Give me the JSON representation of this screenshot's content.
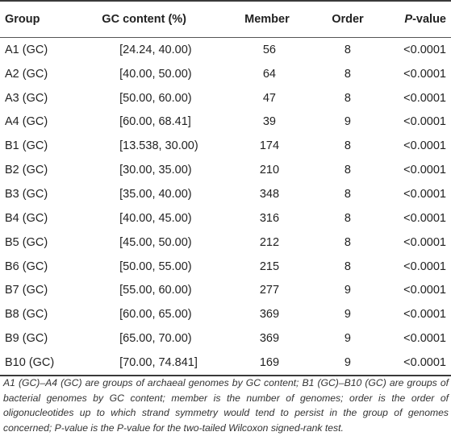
{
  "table": {
    "headers": {
      "group": "Group",
      "gc": "GC content (%)",
      "member": "Member",
      "order": "Order",
      "p_italic": "P",
      "p_rest": "-value"
    },
    "rows": [
      {
        "group": "A1 (GC)",
        "gc": "[24.24, 40.00)",
        "member": "56",
        "order": "8",
        "p": "<0.0001"
      },
      {
        "group": "A2 (GC)",
        "gc": "[40.00, 50.00)",
        "member": "64",
        "order": "8",
        "p": "<0.0001"
      },
      {
        "group": "A3 (GC)",
        "gc": "[50.00, 60.00)",
        "member": "47",
        "order": "8",
        "p": "<0.0001"
      },
      {
        "group": "A4 (GC)",
        "gc": "[60.00, 68.41]",
        "member": "39",
        "order": "9",
        "p": "<0.0001"
      },
      {
        "group": "B1 (GC)",
        "gc": "[13.538, 30.00)",
        "member": "174",
        "order": "8",
        "p": "<0.0001"
      },
      {
        "group": "B2 (GC)",
        "gc": "[30.00, 35.00)",
        "member": "210",
        "order": "8",
        "p": "<0.0001"
      },
      {
        "group": "B3 (GC)",
        "gc": "[35.00, 40.00)",
        "member": "348",
        "order": "8",
        "p": "<0.0001"
      },
      {
        "group": "B4 (GC)",
        "gc": "[40.00, 45.00)",
        "member": "316",
        "order": "8",
        "p": "<0.0001"
      },
      {
        "group": "B5 (GC)",
        "gc": "[45.00, 50.00)",
        "member": "212",
        "order": "8",
        "p": "<0.0001"
      },
      {
        "group": "B6 (GC)",
        "gc": "[50.00, 55.00)",
        "member": "215",
        "order": "8",
        "p": "<0.0001"
      },
      {
        "group": "B7 (GC)",
        "gc": "[55.00, 60.00)",
        "member": "277",
        "order": "9",
        "p": "<0.0001"
      },
      {
        "group": "B8 (GC)",
        "gc": "[60.00, 65.00)",
        "member": "369",
        "order": "9",
        "p": "<0.0001"
      },
      {
        "group": "B9 (GC)",
        "gc": "[65.00, 70.00)",
        "member": "369",
        "order": "9",
        "p": "<0.0001"
      },
      {
        "group": "B10 (GC)",
        "gc": "[70.00, 74.841]",
        "member": "169",
        "order": "9",
        "p": "<0.0001"
      }
    ]
  },
  "footnote": "A1 (GC)–A4 (GC) are groups of archaeal genomes by GC content; B1 (GC)–B10 (GC) are groups of bacterial genomes by GC content; member is the number of genomes; order is the order of oligonucleotides up to which strand symmetry would tend to persist in the group of genomes concerned; P-value is the P-value for the two-tailed Wilcoxon signed-rank test."
}
